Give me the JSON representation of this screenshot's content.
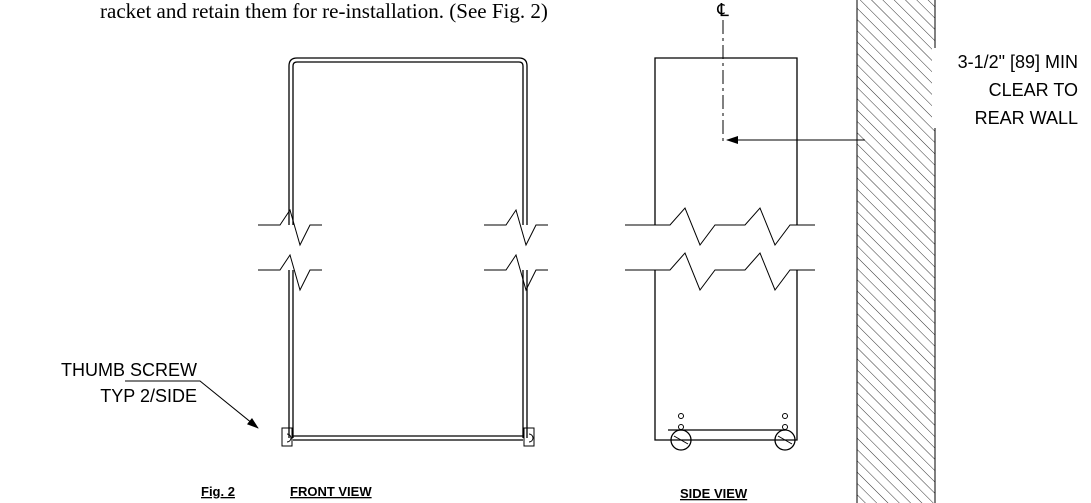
{
  "top_text": "racket and retain them for re-installation.  (See Fig. 2)",
  "centerline_symbol": "℄",
  "dimension": {
    "lines": [
      "3-1/2\" [89] MIN",
      "CLEAR TO",
      "REAR WALL"
    ]
  },
  "callout": {
    "lines": [
      "THUMB SCREW",
      "TYP 2/SIDE"
    ]
  },
  "captions": {
    "figure": "Fig. 2",
    "front": "FRONT VIEW",
    "side": "SIDE VIEW"
  }
}
